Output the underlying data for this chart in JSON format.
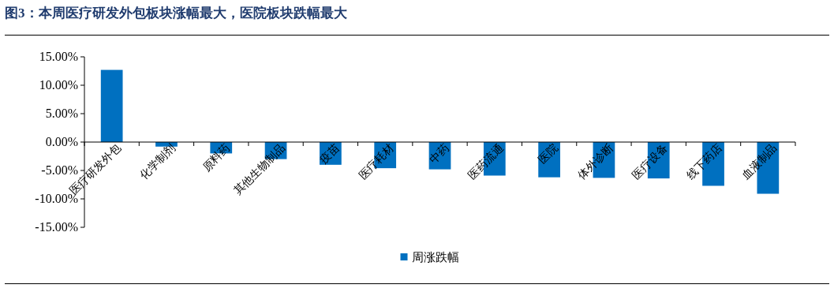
{
  "chart_data": {
    "type": "bar",
    "title": "图3：本周医疗研发外包板块涨幅最大，医院板块跌幅最大",
    "categories": [
      "医疗研发外包",
      "化学制剂",
      "原料药",
      "其他生物制品",
      "疫苗",
      "医疗耗材",
      "中药",
      "医药流通",
      "医院",
      "体外诊断",
      "医疗设备",
      "线下药店",
      "血液制品"
    ],
    "series": [
      {
        "name": "周涨跌幅",
        "color": "#0070c0",
        "values": [
          12.7,
          -0.8,
          -2.0,
          -3.0,
          -4.0,
          -4.6,
          -4.8,
          -5.9,
          -6.2,
          -6.3,
          -6.4,
          -7.7,
          -9.1
        ]
      }
    ],
    "ylim": [
      -15,
      15
    ],
    "yticks": [
      {
        "value": -15,
        "label": "-15.00%"
      },
      {
        "value": -10,
        "label": "-10.00%"
      },
      {
        "value": -5,
        "label": "-5.00%"
      },
      {
        "value": 0,
        "label": "0.00%"
      },
      {
        "value": 5,
        "label": "5.00%"
      },
      {
        "value": 10,
        "label": "10.00%"
      },
      {
        "value": 15,
        "label": "15.00%"
      }
    ],
    "legend": "bottom",
    "grid": false
  }
}
